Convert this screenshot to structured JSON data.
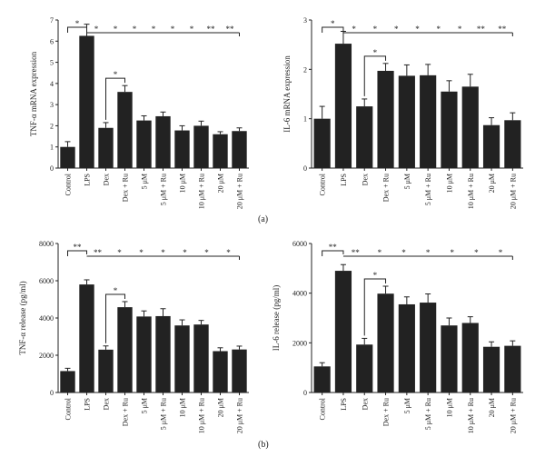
{
  "figure": {
    "panel_labels": [
      "(a)",
      "(b)"
    ]
  },
  "chart_data": [
    {
      "type": "bar",
      "panel": "(a)",
      "categories": [
        "Control",
        "LPS",
        "Dex",
        "Dex + Ru",
        "5 μM",
        "5 μM + Ru",
        "10 μM",
        "10 μM + Ru",
        "20 μM",
        "20 μM + Ru"
      ],
      "values": [
        1.0,
        6.25,
        1.9,
        3.6,
        2.25,
        2.45,
        1.78,
        2.0,
        1.6,
        1.75
      ],
      "errors": [
        0.25,
        0.55,
        0.25,
        0.3,
        0.22,
        0.2,
        0.22,
        0.22,
        0.12,
        0.15
      ],
      "ylabel": "TNF-α mRNA expression",
      "ylim": [
        0,
        7
      ],
      "yticks": [
        0,
        1,
        2,
        3,
        4,
        5,
        6,
        7
      ],
      "grid": false,
      "significance": {
        "pairs": [
          {
            "from": 0,
            "to": 1,
            "label": "*"
          },
          {
            "from": 2,
            "to": 3,
            "label": "*"
          }
        ],
        "line": {
          "from": 1,
          "to": 9,
          "labels": [
            "*",
            "*",
            "*",
            "*",
            "*",
            "*",
            "**",
            "**"
          ]
        }
      }
    },
    {
      "type": "bar",
      "panel": "(a)",
      "categories": [
        "Control",
        "LPS",
        "Dex",
        "Dex + Ru",
        "5 μM",
        "5 μM + Ru",
        "10 μM",
        "10 μM + Ru",
        "20 μM",
        "20 μM + Ru"
      ],
      "values": [
        1.0,
        2.52,
        1.25,
        1.97,
        1.87,
        1.88,
        1.55,
        1.65,
        0.87,
        0.97
      ],
      "errors": [
        0.25,
        0.25,
        0.15,
        0.15,
        0.22,
        0.22,
        0.22,
        0.25,
        0.15,
        0.15
      ],
      "ylabel": "IL-6 mRNA expression",
      "ylim": [
        0,
        3
      ],
      "yticks": [
        0,
        1,
        2,
        3
      ],
      "grid": false,
      "significance": {
        "pairs": [
          {
            "from": 0,
            "to": 1,
            "label": "*"
          },
          {
            "from": 2,
            "to": 3,
            "label": "*"
          }
        ],
        "line": {
          "from": 1,
          "to": 9,
          "labels": [
            "*",
            "*",
            "*",
            "*",
            "*",
            "*",
            "**",
            "**"
          ]
        }
      }
    },
    {
      "type": "bar",
      "panel": "(b)",
      "categories": [
        "Control",
        "LPS",
        "Dex",
        "Dex + Ru",
        "5 μM",
        "5 μM + Ru",
        "10 μM",
        "10 μM + Ru",
        "20 μM",
        "20 μM + Ru"
      ],
      "values": [
        1150,
        5800,
        2300,
        4580,
        4080,
        4100,
        3600,
        3650,
        2220,
        2310
      ],
      "errors": [
        150,
        250,
        200,
        300,
        300,
        400,
        300,
        220,
        180,
        180
      ],
      "ylabel": "TNF-α release (pg/ml)",
      "ylim": [
        0,
        8000
      ],
      "yticks": [
        0,
        2000,
        4000,
        6000,
        8000
      ],
      "grid": false,
      "significance": {
        "pairs": [
          {
            "from": 0,
            "to": 1,
            "label": "**"
          },
          {
            "from": 2,
            "to": 3,
            "label": "*"
          }
        ],
        "line": {
          "from": 1,
          "to": 9,
          "labels": [
            "**",
            "*",
            "*",
            "*",
            "*",
            "*",
            "*"
          ]
        }
      }
    },
    {
      "type": "bar",
      "panel": "(b)",
      "categories": [
        "Control",
        "LPS",
        "Dex",
        "Dex + Ru",
        "5 μM",
        "5 μM + Ru",
        "10 μM",
        "10 μM + Ru",
        "20 μM",
        "20 μM + Ru"
      ],
      "values": [
        1050,
        4900,
        1930,
        3980,
        3550,
        3620,
        2700,
        2800,
        1840,
        1880
      ],
      "errors": [
        150,
        250,
        250,
        300,
        300,
        350,
        300,
        250,
        200,
        200
      ],
      "ylabel": "IL-6 release (pg/ml)",
      "ylim": [
        0,
        6000
      ],
      "yticks": [
        0,
        2000,
        4000,
        6000
      ],
      "grid": false,
      "significance": {
        "pairs": [
          {
            "from": 0,
            "to": 1,
            "label": "**"
          },
          {
            "from": 2,
            "to": 3,
            "label": "*"
          }
        ],
        "line": {
          "from": 1,
          "to": 9,
          "labels": [
            "**",
            "*",
            "*",
            "*",
            "*",
            "*",
            "*"
          ]
        }
      }
    }
  ]
}
